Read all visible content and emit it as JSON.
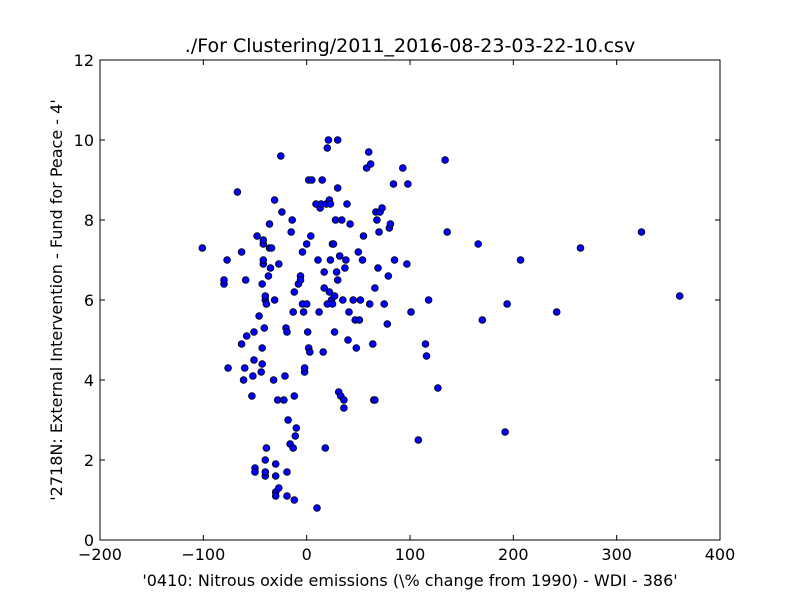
{
  "chart_data": {
    "type": "scatter",
    "title": "./For Clustering/2011_2016-08-23-03-22-10.csv",
    "xlabel": "'0410: Nitrous oxide emissions  (\\% change from 1990) - WDI - 386'",
    "ylabel": "'2718N: External Intervention - Fund for Peace - 4'",
    "xlim": [
      -200,
      400
    ],
    "ylim": [
      0,
      12
    ],
    "xticks": [
      -200,
      -100,
      0,
      100,
      200,
      300,
      400
    ],
    "yticks": [
      0,
      2,
      4,
      6,
      8,
      10,
      12
    ],
    "grid": false,
    "marker_color": "#0000ff",
    "marker_edge_color": "#000000",
    "points": [
      [
        -101,
        7.3
      ],
      [
        -80,
        6.4
      ],
      [
        -80,
        6.5
      ],
      [
        -77,
        7.0
      ],
      [
        -76,
        4.3
      ],
      [
        -67,
        8.7
      ],
      [
        -63,
        7.2
      ],
      [
        -63,
        4.9
      ],
      [
        -61,
        4.0
      ],
      [
        -60,
        4.3
      ],
      [
        -59,
        6.5
      ],
      [
        -58,
        5.1
      ],
      [
        -53,
        3.6
      ],
      [
        -52,
        4.1
      ],
      [
        -51,
        4.5
      ],
      [
        -51,
        5.2
      ],
      [
        -50,
        1.8
      ],
      [
        -50,
        1.7
      ],
      [
        -48,
        7.6
      ],
      [
        -46,
        5.6
      ],
      [
        -44,
        4.2
      ],
      [
        -43,
        4.4
      ],
      [
        -43,
        4.8
      ],
      [
        -43,
        6.4
      ],
      [
        -42,
        6.9
      ],
      [
        -42,
        7.0
      ],
      [
        -42,
        7.4
      ],
      [
        -42,
        7.5
      ],
      [
        -41,
        5.3
      ],
      [
        -40,
        6.0
      ],
      [
        -40,
        6.1
      ],
      [
        -40,
        2.0
      ],
      [
        -40,
        1.6
      ],
      [
        -40,
        1.7
      ],
      [
        -39,
        2.3
      ],
      [
        -39,
        5.9
      ],
      [
        -37,
        6.6
      ],
      [
        -36,
        7.3
      ],
      [
        -36,
        7.9
      ],
      [
        -35,
        6.8
      ],
      [
        -34,
        7.3
      ],
      [
        -32,
        4.0
      ],
      [
        -31,
        8.5
      ],
      [
        -31,
        6.0
      ],
      [
        -30,
        1.2
      ],
      [
        -30,
        1.1
      ],
      [
        -30,
        1.6
      ],
      [
        -30,
        1.9
      ],
      [
        -28,
        3.5
      ],
      [
        -27,
        6.9
      ],
      [
        -27,
        1.3
      ],
      [
        -25,
        9.6
      ],
      [
        -24,
        8.2
      ],
      [
        -22,
        3.5
      ],
      [
        -21,
        4.1
      ],
      [
        -20,
        5.3
      ],
      [
        -19,
        5.2
      ],
      [
        -19,
        1.1
      ],
      [
        -19,
        1.7
      ],
      [
        -18,
        3.0
      ],
      [
        -16,
        2.4
      ],
      [
        -15,
        7.7
      ],
      [
        -14,
        8.0
      ],
      [
        -13,
        5.7
      ],
      [
        -13,
        2.3
      ],
      [
        -12,
        6.2
      ],
      [
        -12,
        3.6
      ],
      [
        -11,
        2.6
      ],
      [
        -10,
        2.8
      ],
      [
        -8,
        6.4
      ],
      [
        -6,
        6.6
      ],
      [
        -6,
        6.5
      ],
      [
        -12,
        1.0
      ],
      [
        -4,
        5.9
      ],
      [
        -4,
        7.2
      ],
      [
        -3,
        5.7
      ],
      [
        -2,
        4.2
      ],
      [
        -2,
        4.3
      ],
      [
        0,
        7.4
      ],
      [
        0,
        5.9
      ],
      [
        1,
        5.2
      ],
      [
        2,
        4.8
      ],
      [
        2,
        9.0
      ],
      [
        3,
        4.7
      ],
      [
        4,
        7.6
      ],
      [
        5,
        9.0
      ],
      [
        9,
        8.4
      ],
      [
        10,
        0.8
      ],
      [
        11,
        7.0
      ],
      [
        12,
        5.7
      ],
      [
        13,
        8.3
      ],
      [
        14,
        8.4
      ],
      [
        15,
        9.0
      ],
      [
        16,
        4.7
      ],
      [
        17,
        6.7
      ],
      [
        17,
        6.3
      ],
      [
        18,
        2.3
      ],
      [
        19,
        8.4
      ],
      [
        20,
        5.9
      ],
      [
        20,
        9.8
      ],
      [
        21,
        10.0
      ],
      [
        22,
        8.5
      ],
      [
        22,
        6.2
      ],
      [
        23,
        7.0
      ],
      [
        23,
        8.4
      ],
      [
        24,
        6.0
      ],
      [
        25,
        5.9
      ],
      [
        25,
        7.4
      ],
      [
        26,
        7.4
      ],
      [
        27,
        5.2
      ],
      [
        27,
        6.1
      ],
      [
        28,
        8.0
      ],
      [
        29,
        6.7
      ],
      [
        30,
        6.5
      ],
      [
        30,
        10.0
      ],
      [
        30,
        8.8
      ],
      [
        31,
        3.7
      ],
      [
        32,
        7.1
      ],
      [
        33,
        3.6
      ],
      [
        34,
        8.0
      ],
      [
        35,
        6.0
      ],
      [
        36,
        3.3
      ],
      [
        36,
        3.5
      ],
      [
        37,
        6.8
      ],
      [
        38,
        7.0
      ],
      [
        39,
        8.4
      ],
      [
        40,
        5.0
      ],
      [
        41,
        5.7
      ],
      [
        42,
        7.9
      ],
      [
        45,
        6.0
      ],
      [
        47,
        5.5
      ],
      [
        48,
        4.8
      ],
      [
        50,
        7.2
      ],
      [
        51,
        5.5
      ],
      [
        52,
        6.0
      ],
      [
        54,
        7.0
      ],
      [
        55,
        7.6
      ],
      [
        58,
        9.3
      ],
      [
        60,
        9.7
      ],
      [
        61,
        5.9
      ],
      [
        62,
        9.4
      ],
      [
        64,
        4.9
      ],
      [
        65,
        3.5
      ],
      [
        66,
        3.5
      ],
      [
        66,
        6.3
      ],
      [
        67,
        8.2
      ],
      [
        68,
        8.0
      ],
      [
        69,
        6.8
      ],
      [
        70,
        7.7
      ],
      [
        71,
        8.2
      ],
      [
        73,
        8.3
      ],
      [
        75,
        5.9
      ],
      [
        78,
        5.4
      ],
      [
        79,
        6.6
      ],
      [
        80,
        7.8
      ],
      [
        81,
        7.9
      ],
      [
        84,
        8.9
      ],
      [
        85,
        7.0
      ],
      [
        93,
        9.3
      ],
      [
        97,
        6.9
      ],
      [
        98,
        8.9
      ],
      [
        101,
        5.7
      ],
      [
        108,
        2.5
      ],
      [
        115,
        4.9
      ],
      [
        116,
        4.6
      ],
      [
        118,
        6.0
      ],
      [
        127,
        3.8
      ],
      [
        134,
        9.5
      ],
      [
        136,
        7.7
      ],
      [
        166,
        7.4
      ],
      [
        170,
        5.5
      ],
      [
        192,
        2.7
      ],
      [
        194,
        5.9
      ],
      [
        207,
        7.0
      ],
      [
        242,
        5.7
      ],
      [
        265,
        7.3
      ],
      [
        324,
        7.7
      ],
      [
        361,
        6.1
      ]
    ]
  }
}
